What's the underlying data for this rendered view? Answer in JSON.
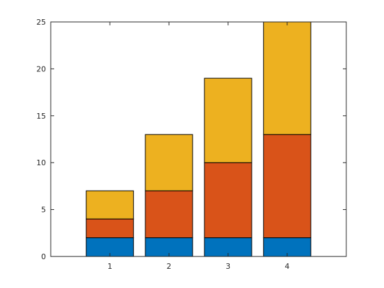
{
  "chart_data": {
    "type": "bar",
    "stacked": true,
    "categories": [
      "1",
      "2",
      "3",
      "4"
    ],
    "series": [
      {
        "values": [
          2,
          2,
          2,
          2
        ],
        "color": "#0072BD"
      },
      {
        "values": [
          2,
          5,
          8,
          11
        ],
        "color": "#D95319"
      },
      {
        "values": [
          3,
          6,
          9,
          12
        ],
        "color": "#EDB120"
      }
    ],
    "xlim": [
      0,
      5
    ],
    "ylim": [
      0,
      25
    ],
    "yticks": [
      0,
      5,
      10,
      15,
      20,
      25
    ],
    "xticks": [
      1,
      2,
      3,
      4
    ],
    "title": "",
    "xlabel": "",
    "ylabel": "",
    "grid": false,
    "box": true
  }
}
